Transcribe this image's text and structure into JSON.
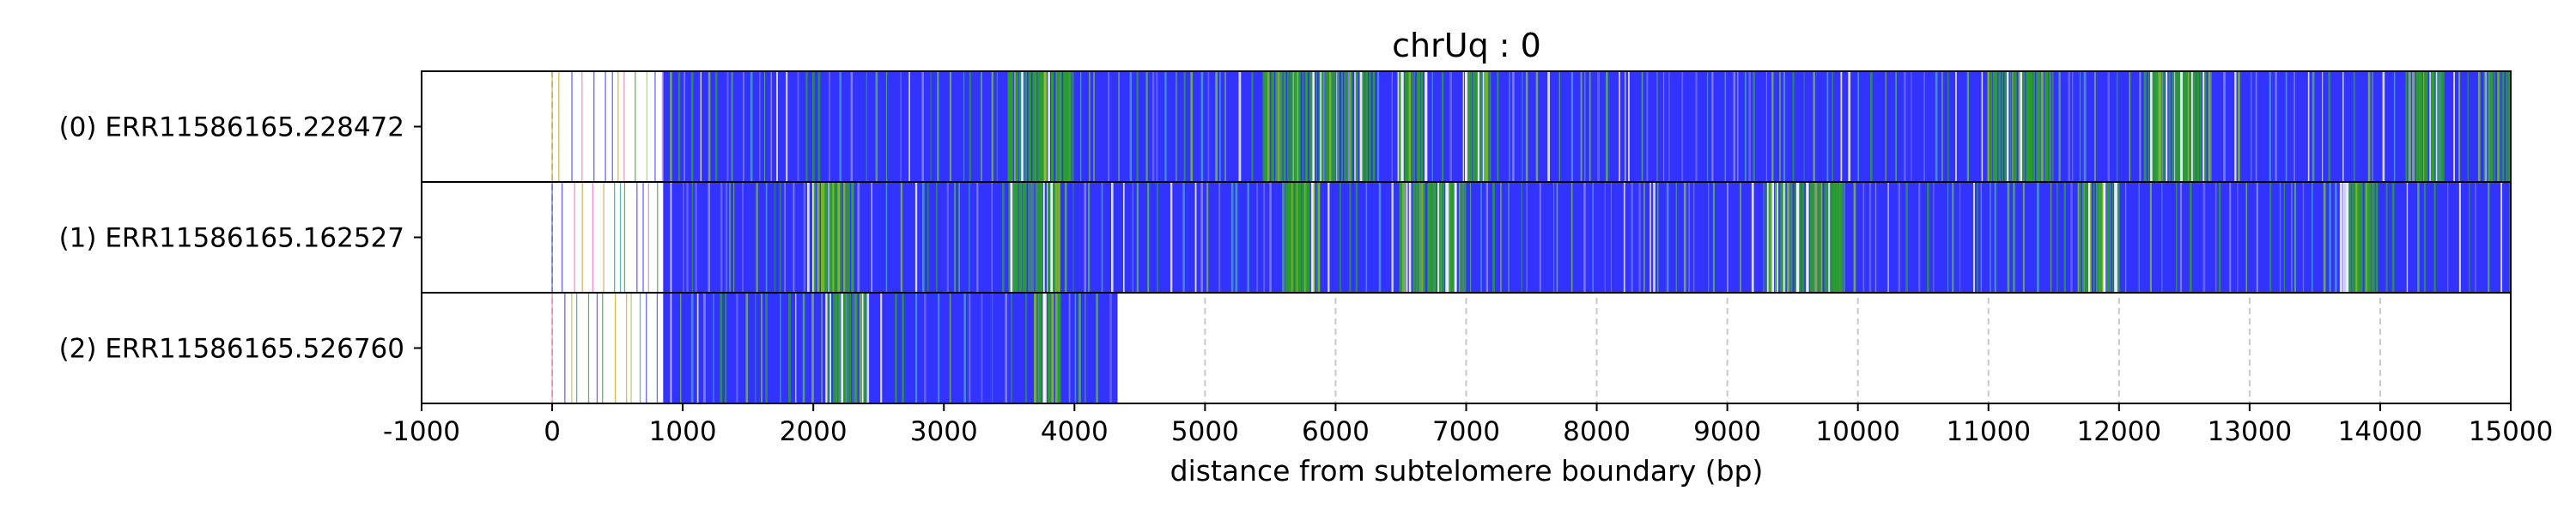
{
  "chart_data": {
    "type": "heatmap",
    "title": "chrUq : 0",
    "xlabel": "distance from subtelomere boundary (bp)",
    "xlim": [
      -1000,
      15000
    ],
    "x_ticks": [
      -1000,
      0,
      1000,
      2000,
      3000,
      4000,
      5000,
      6000,
      7000,
      8000,
      9000,
      10000,
      11000,
      12000,
      13000,
      14000,
      15000
    ],
    "x_tick_labels": [
      "-1000",
      "0",
      "1000",
      "2000",
      "3000",
      "4000",
      "5000",
      "6000",
      "7000",
      "8000",
      "9000",
      "10000",
      "11000",
      "12000",
      "13000",
      "14000",
      "15000"
    ],
    "grid": "vertical dashed at x ticks",
    "colors": {
      "primary": "#3333ff",
      "secondary": "#2ca02c",
      "grid": "#c8c8c8"
    },
    "reads": [
      {
        "label": "(0) ERR11586165.228472",
        "read_start": 0,
        "read_end": 15000,
        "dense_start": 850,
        "sparse_marks_start": 0,
        "green_clusters": [
          [
            3500,
            4000
          ],
          [
            5450,
            6300
          ],
          [
            6500,
            6700
          ],
          [
            7000,
            7200
          ],
          [
            11000,
            11500
          ],
          [
            12200,
            12700
          ],
          [
            14200,
            14500
          ],
          [
            14800,
            15000
          ]
        ]
      },
      {
        "label": "(1) ERR11586165.162527",
        "read_start": 0,
        "read_end": 15000,
        "dense_start": 850,
        "sparse_marks_start": 0,
        "green_clusters": [
          [
            2000,
            2300
          ],
          [
            3500,
            3900
          ],
          [
            5600,
            5900
          ],
          [
            6500,
            7000
          ],
          [
            9300,
            9900
          ],
          [
            11700,
            12000
          ],
          [
            13700,
            14000
          ]
        ]
      },
      {
        "label": "(2) ERR11586165.526760",
        "read_start": 0,
        "read_end": 4330,
        "dense_start": 850,
        "sparse_marks_start": 0,
        "green_clusters": [
          [
            2100,
            2400
          ],
          [
            3700,
            3900
          ]
        ]
      }
    ]
  }
}
